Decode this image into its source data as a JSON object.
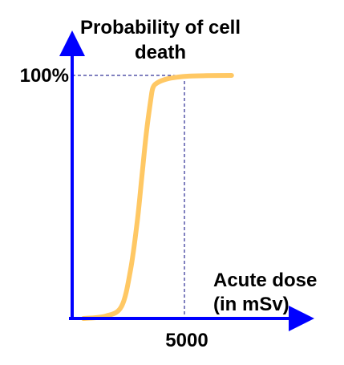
{
  "chart_data": {
    "type": "line",
    "title": "",
    "ylabel_lines": [
      "Probability of cell",
      "death"
    ],
    "xlabel_lines": [
      "Acute dose",
      "(in mSv)"
    ],
    "y_tick_labels": [
      "100%"
    ],
    "x_tick_labels": [
      "5000"
    ],
    "x_ticks": [
      5000
    ],
    "y_ticks": [
      100
    ],
    "xlim": [
      0,
      8000
    ],
    "ylim": [
      0,
      100
    ],
    "grid": false,
    "legend": "none",
    "reference_lines": [
      {
        "axis": "y",
        "value": 100
      },
      {
        "axis": "x",
        "value": 5000
      }
    ],
    "series": [
      {
        "x": [
          500,
          1500,
          2200,
          2600,
          2900,
          3100,
          3300,
          3500,
          3600,
          3800,
          4200,
          4700,
          5200,
          6000,
          7100
        ],
        "y": [
          0,
          1,
          5,
          20,
          40,
          58,
          76,
          90,
          95,
          97,
          98.5,
          99.3,
          99.7,
          99.9,
          100
        ]
      }
    ],
    "colors": {
      "axis": "#0000FF",
      "curve": "#FFC864",
      "reference": "#00007F"
    }
  }
}
